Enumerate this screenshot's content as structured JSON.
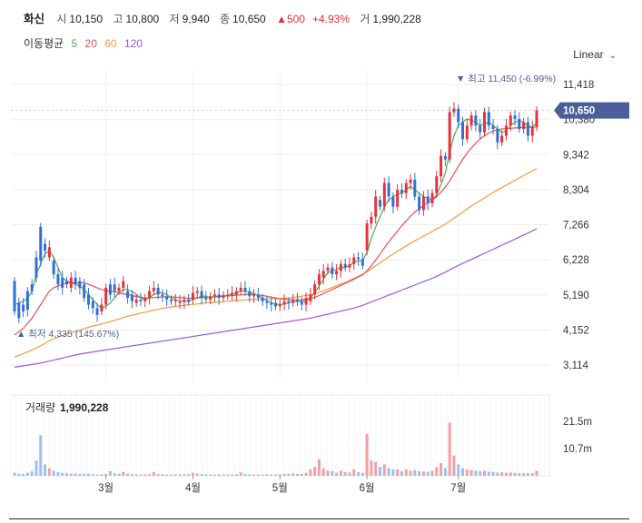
{
  "header": {
    "name": "화신",
    "open_label": "시",
    "open": "10,150",
    "high_label": "고",
    "high": "10,800",
    "low_label": "저",
    "low": "9,940",
    "close_label": "종",
    "close": "10,650",
    "change_arrow": "▲",
    "change": "500",
    "change_pct": "+4.93%",
    "volume_label": "거",
    "volume": "1,990,228"
  },
  "ma_legend": {
    "title": "이동평균",
    "items": [
      {
        "label": "5",
        "color": "#4caf50"
      },
      {
        "label": "20",
        "color": "#e8505b"
      },
      {
        "label": "60",
        "color": "#f39a3c"
      },
      {
        "label": "120",
        "color": "#9b59d9"
      }
    ]
  },
  "scale_selector": {
    "label": "Linear"
  },
  "colors": {
    "up": "#e8303c",
    "down": "#2f6fd6",
    "price_tag": "#4a5f9a",
    "volume_up": "#f0a0a6",
    "volume_down": "#9cc0ee"
  },
  "chart_data": {
    "type": "candlestick",
    "price_axis_ticks": [
      "11,418",
      "10,380",
      "9,342",
      "8,304",
      "7,266",
      "6,228",
      "5,190",
      "4,152",
      "3,114"
    ],
    "price_axis_values": [
      11418,
      10380,
      9342,
      8304,
      7266,
      6228,
      5190,
      4152,
      3114
    ],
    "current_price_label": "10,650",
    "current_price": 10650,
    "max_label": "▼ 최고 11,450 (-6.99%)",
    "min_label": "▲ 최저 4,335 (145.67%)",
    "x_ticks": [
      {
        "label": "3월",
        "index": 21
      },
      {
        "label": "4월",
        "index": 41
      },
      {
        "label": "5월",
        "index": 61
      },
      {
        "label": "6월",
        "index": 81
      },
      {
        "label": "7월",
        "index": 102
      }
    ],
    "volume_title": "거래량",
    "volume_value": "1,990,228",
    "volume_axis_ticks": [
      "21.5m",
      "10.7m"
    ],
    "volume_axis_values": [
      21500000,
      10700000
    ],
    "candles": [
      [
        5600,
        4700
      ],
      [
        4950,
        4500
      ],
      [
        4900,
        4700
      ],
      [
        5300,
        4750
      ],
      [
        5500,
        5300
      ],
      [
        6300,
        5700
      ],
      [
        7200,
        6200
      ],
      [
        6700,
        6500
      ],
      [
        6300,
        6600
      ],
      [
        6200,
        5800
      ],
      [
        5800,
        5500
      ],
      [
        5700,
        5400
      ],
      [
        5600,
        5500
      ],
      [
        5400,
        5700
      ],
      [
        5700,
        5500
      ],
      [
        5600,
        5400
      ],
      [
        5500,
        5100
      ],
      [
        5200,
        4900
      ],
      [
        5000,
        4800
      ],
      [
        4800,
        4600
      ],
      [
        4700,
        4900
      ],
      [
        4900,
        5400
      ],
      [
        5500,
        5200
      ],
      [
        5500,
        5300
      ],
      [
        5300,
        5400
      ],
      [
        5400,
        5600
      ],
      [
        5300,
        5100
      ],
      [
        5200,
        5000
      ],
      [
        4950,
        5050
      ],
      [
        5050,
        5000
      ],
      [
        5000,
        5100
      ],
      [
        5100,
        5300
      ],
      [
        5300,
        5400
      ],
      [
        5400,
        5200
      ],
      [
        5200,
        5150
      ],
      [
        5150,
        5050
      ],
      [
        5050,
        5000
      ],
      [
        5000,
        5050
      ],
      [
        4950,
        4980
      ],
      [
        4980,
        5050
      ],
      [
        5050,
        4980
      ],
      [
        5050,
        5250
      ],
      [
        5250,
        5300
      ],
      [
        5300,
        5100
      ],
      [
        5100,
        5050
      ],
      [
        5050,
        5150
      ],
      [
        5150,
        5200
      ],
      [
        5200,
        5100
      ],
      [
        5100,
        5180
      ],
      [
        5180,
        5200
      ],
      [
        5200,
        5250
      ],
      [
        5200,
        5300
      ],
      [
        5300,
        5400
      ],
      [
        5400,
        5300
      ],
      [
        5300,
        5150
      ],
      [
        5150,
        5200
      ],
      [
        5200,
        5100
      ],
      [
        5100,
        5000
      ],
      [
        5000,
        4950
      ],
      [
        4950,
        4900
      ],
      [
        4950,
        4850
      ],
      [
        4850,
        4900
      ],
      [
        4900,
        5000
      ],
      [
        5000,
        4950
      ],
      [
        4950,
        5050
      ],
      [
        5050,
        5000
      ],
      [
        5000,
        4900
      ],
      [
        4900,
        5100
      ],
      [
        5000,
        5200
      ],
      [
        5200,
        5500
      ],
      [
        5500,
        5800
      ],
      [
        5700,
        5900
      ],
      [
        5900,
        6000
      ],
      [
        6000,
        5800
      ],
      [
        5800,
        5900
      ],
      [
        5900,
        6100
      ],
      [
        6100,
        6000
      ],
      [
        6000,
        6100
      ],
      [
        6100,
        6300
      ],
      [
        6300,
        6250
      ],
      [
        6250,
        6050
      ],
      [
        6500,
        7300
      ],
      [
        7300,
        7500
      ],
      [
        7500,
        8100
      ],
      [
        8000,
        7800
      ],
      [
        7800,
        8500
      ],
      [
        8500,
        8100
      ],
      [
        8100,
        7800
      ],
      [
        7800,
        8300
      ],
      [
        8300,
        8200
      ],
      [
        8200,
        8500
      ],
      [
        8500,
        8600
      ],
      [
        8600,
        8100
      ],
      [
        8100,
        7700
      ],
      [
        7700,
        8100
      ],
      [
        8100,
        7900
      ],
      [
        7900,
        8200
      ],
      [
        8200,
        8700
      ],
      [
        8700,
        9300
      ],
      [
        9300,
        9200
      ],
      [
        9200,
        10600
      ],
      [
        10600,
        10700
      ],
      [
        10700,
        10300
      ],
      [
        10300,
        9800
      ],
      [
        9800,
        10200
      ],
      [
        10200,
        10500
      ],
      [
        10500,
        10200
      ],
      [
        10200,
        10000
      ],
      [
        10000,
        10600
      ],
      [
        10600,
        10200
      ],
      [
        10200,
        10100
      ],
      [
        10100,
        9700
      ],
      [
        9700,
        9900
      ],
      [
        9900,
        10200
      ],
      [
        10200,
        10500
      ],
      [
        10500,
        10400
      ],
      [
        10400,
        10100
      ],
      [
        10100,
        10300
      ],
      [
        10300,
        9900
      ],
      [
        9900,
        10150
      ],
      [
        10150,
        10650
      ]
    ],
    "volumes": [
      1.2,
      0.8,
      0.7,
      1.2,
      1.8,
      6.0,
      16.0,
      4.5,
      3.0,
      2.0,
      1.5,
      1.2,
      1.0,
      0.8,
      0.9,
      0.7,
      0.8,
      0.9,
      0.6,
      0.5,
      0.6,
      0.7,
      1.8,
      1.0,
      0.8,
      1.5,
      0.9,
      0.7,
      0.6,
      0.5,
      0.6,
      0.6,
      1.5,
      0.8,
      0.6,
      0.5,
      0.5,
      0.5,
      0.6,
      0.6,
      0.6,
      1.2,
      0.9,
      0.7,
      0.6,
      0.5,
      0.5,
      0.6,
      0.5,
      0.5,
      0.5,
      0.6,
      1.3,
      0.7,
      0.6,
      0.5,
      0.5,
      0.5,
      0.6,
      0.5,
      0.5,
      0.6,
      0.7,
      0.8,
      0.9,
      0.8,
      0.7,
      1.2,
      2.5,
      3.5,
      6.5,
      3.0,
      2.0,
      1.8,
      1.2,
      2.0,
      1.5,
      1.3,
      2.5,
      1.4,
      1.2,
      16.5,
      6.0,
      5.5,
      3.5,
      4.5,
      3.0,
      2.5,
      2.6,
      1.8,
      2.5,
      2.0,
      2.2,
      1.8,
      1.6,
      1.6,
      2.0,
      3.5,
      5.0,
      3.0,
      21.0,
      8.0,
      4.5,
      3.0,
      2.5,
      2.2,
      2.0,
      1.8,
      2.0,
      1.6,
      1.5,
      1.3,
      1.4,
      1.2,
      1.3,
      1.1,
      1.0,
      1.0,
      1.1,
      1.0,
      1.99
    ],
    "ma5": [
      4900,
      4950,
      5000,
      5100,
      5300,
      5800,
      6100,
      6400,
      6500,
      6300,
      6000,
      5700,
      5600,
      5550,
      5500,
      5450,
      5350,
      5200,
      5050,
      4900,
      4800,
      4850,
      4950,
      5100,
      5250,
      5350,
      5350,
      5300,
      5200,
      5100,
      5050,
      5100,
      5200,
      5250,
      5250,
      5200,
      5100,
      5050,
      5000,
      5000,
      5000,
      5050,
      5100,
      5150,
      5150,
      5100,
      5150,
      5150,
      5150,
      5180,
      5200,
      5250,
      5300,
      5300,
      5270,
      5230,
      5170,
      5100,
      5020,
      4960,
      4920,
      4900,
      4920,
      4950,
      4980,
      5000,
      5000,
      5000,
      5100,
      5250,
      5450,
      5650,
      5850,
      5900,
      5950,
      6000,
      6000,
      6050,
      6150,
      6200,
      6200,
      6450,
      6850,
      7200,
      7500,
      7800,
      8000,
      8100,
      8150,
      8200,
      8300,
      8400,
      8300,
      8200,
      8100,
      8050,
      8000,
      8150,
      8450,
      8800,
      9400,
      9900,
      10200,
      10300,
      10400,
      10350,
      10300,
      10200,
      10250,
      10300,
      10200,
      10100,
      10000,
      10050,
      10200,
      10300,
      10350,
      10300,
      10200,
      10150,
      10300
    ],
    "ma20": [
      4000,
      4100,
      4200,
      4350,
      4500,
      4700,
      4900,
      5100,
      5300,
      5400,
      5450,
      5500,
      5550,
      5550,
      5550,
      5550,
      5550,
      5500,
      5450,
      5400,
      5350,
      5320,
      5300,
      5280,
      5250,
      5220,
      5200,
      5170,
      5140,
      5120,
      5100,
      5100,
      5110,
      5120,
      5130,
      5130,
      5130,
      5120,
      5110,
      5100,
      5090,
      5090,
      5100,
      5110,
      5120,
      5120,
      5130,
      5140,
      5150,
      5160,
      5170,
      5180,
      5190,
      5200,
      5210,
      5200,
      5190,
      5170,
      5150,
      5120,
      5100,
      5080,
      5060,
      5050,
      5040,
      5040,
      5050,
      5060,
      5080,
      5120,
      5170,
      5230,
      5290,
      5350,
      5410,
      5470,
      5530,
      5590,
      5650,
      5720,
      5780,
      5900,
      6050,
      6220,
      6400,
      6580,
      6760,
      6920,
      7080,
      7240,
      7380,
      7520,
      7640,
      7740,
      7830,
      7920,
      8000,
      8100,
      8230,
      8380,
      8560,
      8780,
      9000,
      9200,
      9380,
      9540,
      9680,
      9800,
      9900,
      9980,
      10040,
      10080,
      10100,
      10110,
      10120,
      10130,
      10140,
      10150,
      10150,
      10150,
      10160
    ],
    "ma60": [
      3350,
      3400,
      3450,
      3500,
      3560,
      3620,
      3690,
      3760,
      3830,
      3890,
      3940,
      3990,
      4030,
      4070,
      4110,
      4150,
      4190,
      4230,
      4270,
      4300,
      4330,
      4360,
      4400,
      4440,
      4480,
      4520,
      4560,
      4590,
      4620,
      4650,
      4680,
      4710,
      4740,
      4760,
      4790,
      4810,
      4830,
      4850,
      4870,
      4880,
      4900,
      4910,
      4920,
      4940,
      4950,
      4960,
      4970,
      4980,
      4990,
      5000,
      5010,
      5020,
      5030,
      5040,
      5050,
      5060,
      5060,
      5070,
      5070,
      5070,
      5080,
      5080,
      5090,
      5100,
      5110,
      5130,
      5150,
      5170,
      5200,
      5230,
      5270,
      5310,
      5360,
      5410,
      5460,
      5510,
      5560,
      5620,
      5680,
      5740,
      5800,
      5880,
      5960,
      6050,
      6140,
      6230,
      6320,
      6400,
      6480,
      6560,
      6640,
      6720,
      6790,
      6860,
      6930,
      7000,
      7070,
      7140,
      7210,
      7290,
      7370,
      7460,
      7550,
      7640,
      7730,
      7820,
      7900,
      7980,
      8060,
      8140,
      8220,
      8300,
      8370,
      8440,
      8510,
      8580,
      8650,
      8720,
      8790,
      8860,
      8930
    ],
    "ma120": [
      3050,
      3070,
      3090,
      3110,
      3130,
      3150,
      3170,
      3200,
      3230,
      3260,
      3290,
      3320,
      3350,
      3380,
      3410,
      3440,
      3460,
      3480,
      3500,
      3520,
      3540,
      3560,
      3580,
      3600,
      3620,
      3640,
      3660,
      3680,
      3700,
      3720,
      3740,
      3760,
      3780,
      3800,
      3820,
      3840,
      3860,
      3880,
      3900,
      3920,
      3940,
      3960,
      3980,
      4000,
      4020,
      4040,
      4060,
      4080,
      4100,
      4120,
      4140,
      4160,
      4180,
      4200,
      4220,
      4240,
      4260,
      4280,
      4300,
      4320,
      4340,
      4360,
      4380,
      4400,
      4420,
      4440,
      4460,
      4480,
      4500,
      4530,
      4560,
      4590,
      4620,
      4650,
      4680,
      4710,
      4740,
      4770,
      4800,
      4840,
      4880,
      4930,
      4980,
      5030,
      5080,
      5130,
      5180,
      5230,
      5280,
      5330,
      5380,
      5430,
      5480,
      5530,
      5580,
      5630,
      5680,
      5740,
      5800,
      5860,
      5930,
      6000,
      6060,
      6120,
      6180,
      6240,
      6300,
      6360,
      6420,
      6480,
      6540,
      6600,
      6660,
      6720,
      6780,
      6840,
      6900,
      6960,
      7020,
      7080,
      7150
    ]
  }
}
